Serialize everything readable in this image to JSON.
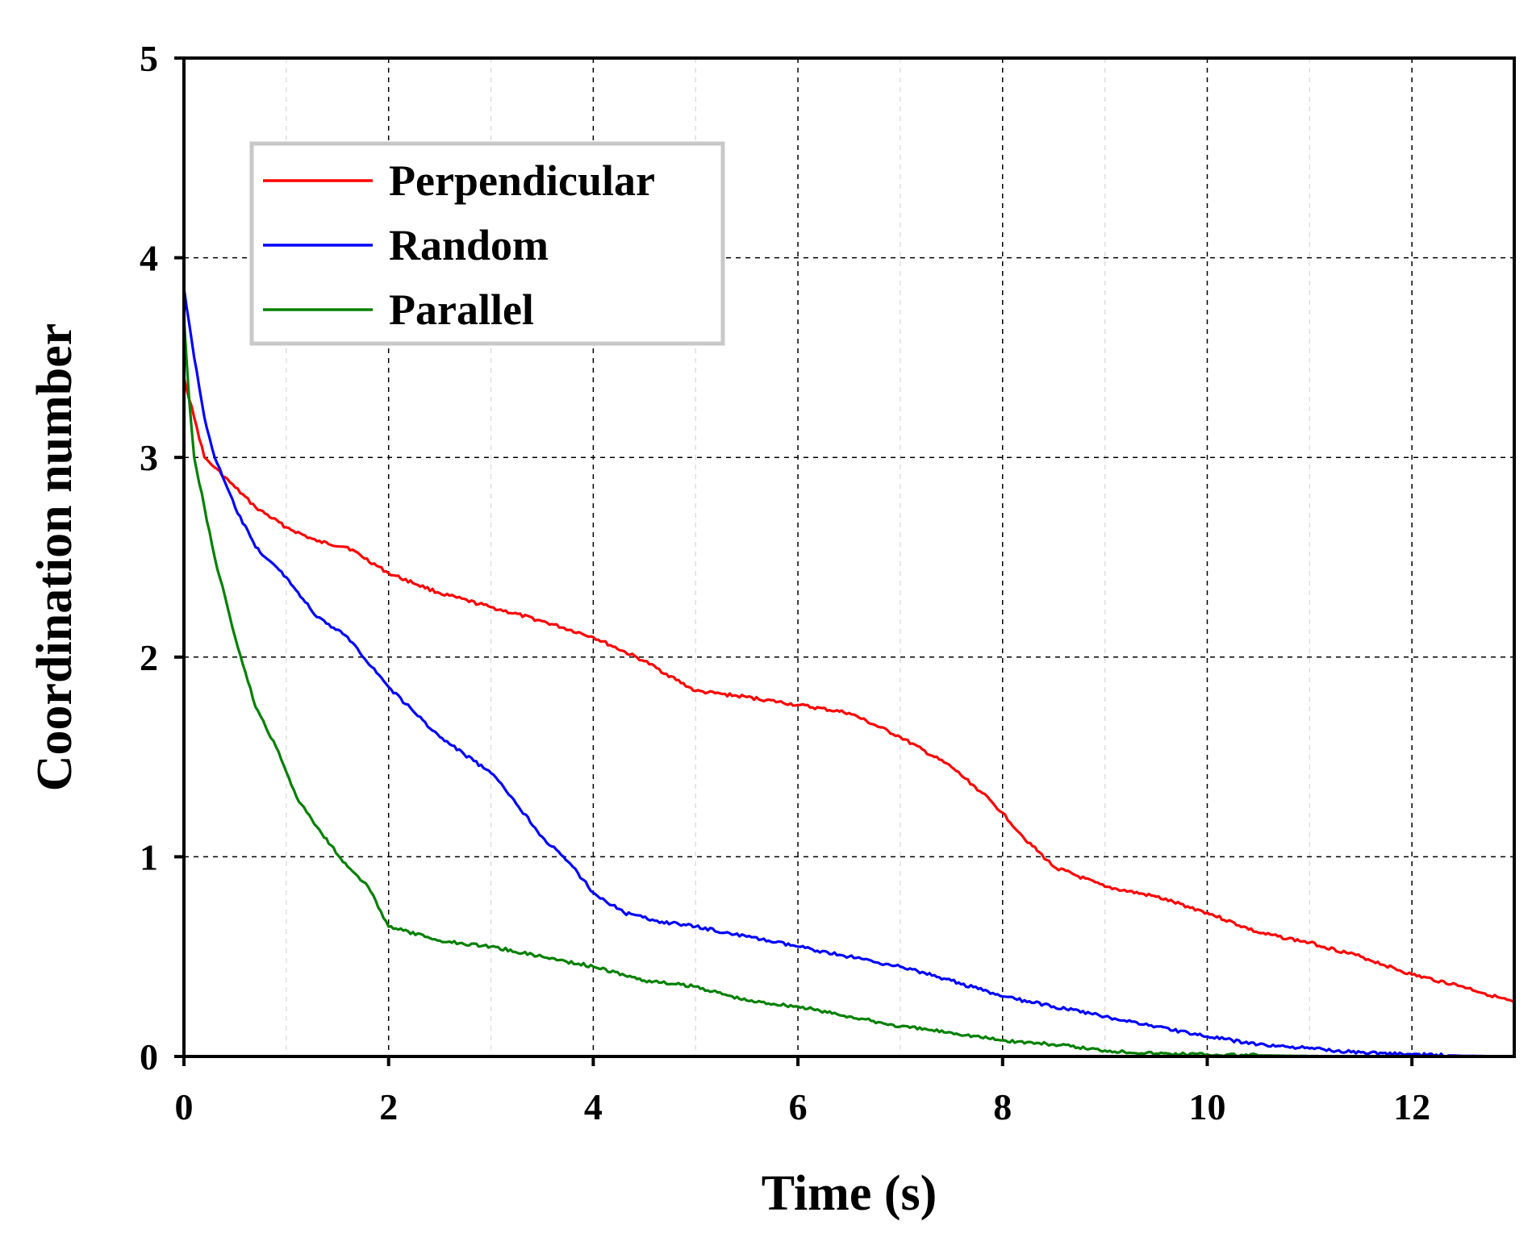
{
  "chart_data": {
    "type": "line",
    "title": "",
    "xlabel": "Time (s)",
    "ylabel": "Coordination number",
    "xlim": [
      0,
      13
    ],
    "ylim": [
      0,
      5
    ],
    "xticks": [
      0,
      2,
      4,
      6,
      8,
      10,
      12
    ],
    "yticks": [
      0,
      1,
      2,
      3,
      4,
      5
    ],
    "grid": true,
    "legend_position": "top-left",
    "series": [
      {
        "name": "Perpendicular",
        "color": "#ff0000",
        "x": [
          0,
          0.1,
          0.2,
          0.3,
          0.5,
          0.7,
          1.0,
          1.3,
          1.6,
          2.0,
          2.5,
          3.0,
          3.5,
          4.0,
          4.5,
          5.0,
          5.5,
          6.0,
          6.5,
          7.0,
          7.5,
          7.8,
          8.0,
          8.2,
          8.5,
          9.0,
          9.5,
          10.0,
          10.5,
          11.0,
          11.5,
          12.0,
          12.5,
          13.0
        ],
        "y": [
          3.4,
          3.2,
          3.0,
          2.95,
          2.85,
          2.75,
          2.65,
          2.58,
          2.55,
          2.42,
          2.32,
          2.25,
          2.18,
          2.1,
          1.98,
          1.83,
          1.8,
          1.76,
          1.72,
          1.6,
          1.45,
          1.32,
          1.22,
          1.1,
          0.95,
          0.85,
          0.8,
          0.72,
          0.62,
          0.57,
          0.5,
          0.41,
          0.35,
          0.27
        ]
      },
      {
        "name": "Random",
        "color": "#0000ff",
        "x": [
          0,
          0.1,
          0.2,
          0.3,
          0.5,
          0.7,
          1.0,
          1.3,
          1.6,
          2.0,
          2.5,
          3.0,
          3.2,
          3.5,
          3.8,
          4.0,
          4.3,
          4.6,
          5.0,
          5.5,
          6.0,
          6.5,
          7.0,
          7.5,
          8.0,
          8.5,
          9.0,
          9.5,
          10.0,
          10.5,
          11.0,
          11.5,
          12.0,
          12.5,
          13.0
        ],
        "y": [
          3.85,
          3.5,
          3.2,
          3.0,
          2.75,
          2.55,
          2.4,
          2.2,
          2.1,
          1.85,
          1.6,
          1.42,
          1.3,
          1.1,
          0.95,
          0.82,
          0.72,
          0.68,
          0.65,
          0.6,
          0.55,
          0.5,
          0.45,
          0.38,
          0.3,
          0.25,
          0.2,
          0.15,
          0.1,
          0.06,
          0.04,
          0.02,
          0.01,
          0.003,
          0.0
        ]
      },
      {
        "name": "Parallel",
        "color": "#008000",
        "x": [
          0,
          0.05,
          0.1,
          0.2,
          0.3,
          0.5,
          0.7,
          0.9,
          1.1,
          1.3,
          1.6,
          1.8,
          2.0,
          2.5,
          3.0,
          3.5,
          4.0,
          4.5,
          5.0,
          5.5,
          6.0,
          6.5,
          7.0,
          7.5,
          8.0,
          8.5,
          9.0,
          9.5,
          10.0,
          10.5,
          11.0,
          12.0,
          13.0
        ],
        "y": [
          3.7,
          3.3,
          3.0,
          2.75,
          2.5,
          2.1,
          1.75,
          1.55,
          1.3,
          1.15,
          0.95,
          0.85,
          0.65,
          0.58,
          0.55,
          0.5,
          0.45,
          0.38,
          0.35,
          0.28,
          0.25,
          0.2,
          0.15,
          0.12,
          0.08,
          0.06,
          0.03,
          0.015,
          0.01,
          0.005,
          0.002,
          0.0,
          0.0
        ]
      }
    ]
  }
}
